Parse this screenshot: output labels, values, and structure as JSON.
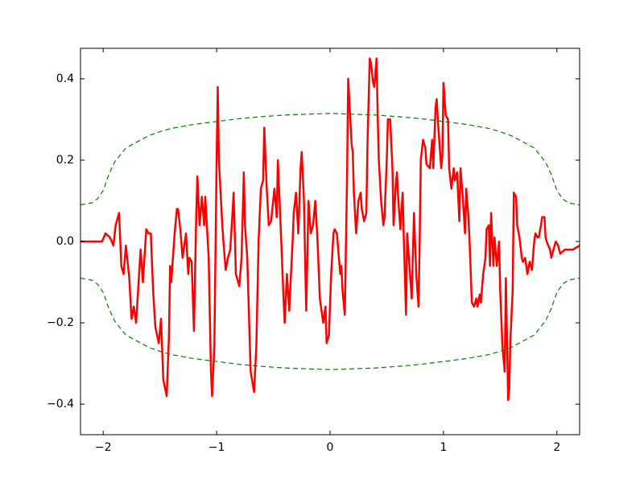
{
  "chart_data": {
    "type": "line",
    "xlim": [
      -2.2,
      2.2
    ],
    "ylim": [
      -0.475,
      0.475
    ],
    "xticks": [
      {
        "value": -2,
        "label": "−2"
      },
      {
        "value": -1,
        "label": "−1"
      },
      0,
      1,
      2
    ],
    "yticks": [
      {
        "value": -0.4,
        "label": "−0.4"
      },
      {
        "value": -0.2,
        "label": "−0.2"
      },
      {
        "value": 0,
        "label": "0.0"
      },
      0.2,
      0.4
    ],
    "grid": false,
    "series": [
      {
        "color": "#ff0000",
        "linestyle": "solid",
        "x": [
          -2.2,
          -2.07,
          -2.01,
          -1.98,
          -1.94,
          -1.91,
          -1.89,
          -1.86,
          -1.84,
          -1.82,
          -1.8,
          -1.77,
          -1.75,
          -1.73,
          -1.71,
          -1.69,
          -1.67,
          -1.65,
          -1.62,
          -1.6,
          -1.58,
          -1.56,
          -1.54,
          -1.51,
          -1.49,
          -1.47,
          -1.44,
          -1.42,
          -1.41,
          -1.4,
          -1.37,
          -1.35,
          -1.34,
          -1.32,
          -1.3,
          -1.27,
          -1.25,
          -1.24,
          -1.22,
          -1.2,
          -1.18,
          -1.17,
          -1.15,
          -1.13,
          -1.11,
          -1.1,
          -1.07,
          -1.05,
          -1.04,
          -1.02,
          -1.0,
          -0.99,
          -0.98,
          -0.95,
          -0.94,
          -0.92,
          -0.9,
          -0.88,
          -0.86,
          -0.85,
          -0.83,
          -0.8,
          -0.78,
          -0.76,
          -0.75,
          -0.73,
          -0.7,
          -0.67,
          -0.65,
          -0.63,
          -0.61,
          -0.59,
          -0.58,
          -0.56,
          -0.54,
          -0.52,
          -0.49,
          -0.47,
          -0.46,
          -0.43,
          -0.41,
          -0.4,
          -0.38,
          -0.36,
          -0.33,
          -0.32,
          -0.3,
          -0.28,
          -0.26,
          -0.25,
          -0.23,
          -0.22,
          -0.21,
          -0.19,
          -0.17,
          -0.15,
          -0.13,
          -0.11,
          -0.09,
          -0.06,
          -0.04,
          -0.03,
          -0.01,
          0.01,
          0.03,
          0.04,
          0.06,
          0.09,
          0.1,
          0.11,
          0.13,
          0.15,
          0.16,
          0.19,
          0.2,
          0.21,
          0.23,
          0.25,
          0.27,
          0.28,
          0.3,
          0.32,
          0.33,
          0.35,
          0.36,
          0.38,
          0.39,
          0.41,
          0.42,
          0.43,
          0.45,
          0.47,
          0.48,
          0.5,
          0.51,
          0.53,
          0.55,
          0.56,
          0.58,
          0.59,
          0.6,
          0.62,
          0.64,
          0.65,
          0.67,
          0.68,
          0.7,
          0.72,
          0.74,
          0.76,
          0.78,
          0.79,
          0.8,
          0.82,
          0.84,
          0.85,
          0.88,
          0.9,
          0.91,
          0.93,
          0.94,
          0.95,
          0.98,
          0.99,
          1.0,
          1.02,
          1.04,
          1.05,
          1.07,
          1.09,
          1.1,
          1.12,
          1.14,
          1.15,
          1.17,
          1.19,
          1.2,
          1.22,
          1.23,
          1.25,
          1.27,
          1.29,
          1.3,
          1.32,
          1.33,
          1.35,
          1.37,
          1.38,
          1.4,
          1.41,
          1.42,
          1.44,
          1.45,
          1.47,
          1.49,
          1.5,
          1.52,
          1.54,
          1.55,
          1.57,
          1.58,
          1.59,
          1.61,
          1.62,
          1.64,
          1.65,
          1.67,
          1.69,
          1.7,
          1.72,
          1.73,
          1.74,
          1.76,
          1.78,
          1.8,
          1.81,
          1.83,
          1.84,
          1.86,
          1.87,
          1.89,
          1.9,
          1.91,
          1.94,
          1.95,
          1.96,
          1.99,
          2.01,
          2.03,
          2.07,
          2.14,
          2.2
        ],
        "values": [
          0,
          0,
          0,
          0.02,
          0.01,
          -0.01,
          0.04,
          0.07,
          -0.06,
          -0.08,
          -0.01,
          -0.09,
          -0.19,
          -0.16,
          -0.2,
          -0.11,
          -0.02,
          -0.1,
          0.03,
          0.02,
          0.02,
          -0.12,
          -0.21,
          -0.25,
          -0.19,
          -0.34,
          -0.38,
          -0.23,
          -0.06,
          -0.1,
          0.02,
          0.08,
          0.08,
          0.03,
          -0.04,
          0.02,
          -0.08,
          -0.04,
          -0.05,
          -0.22,
          0.06,
          0.16,
          0.04,
          0.11,
          0.04,
          0.11,
          -0.04,
          -0.32,
          -0.38,
          -0.26,
          0.2,
          0.38,
          0.2,
          0.04,
          0,
          -0.07,
          -0.04,
          -0.02,
          0.07,
          0.12,
          -0.08,
          -0.11,
          -0.04,
          0.17,
          0.04,
          -0.04,
          -0.32,
          -0.37,
          -0.26,
          0,
          0.13,
          0.15,
          0.28,
          0.14,
          0.04,
          0.05,
          0.13,
          0.06,
          0.2,
          0,
          -0.14,
          -0.2,
          -0.08,
          -0.17,
          0,
          0.07,
          0.12,
          0.02,
          0.18,
          0.22,
          0.1,
          -0.04,
          -0.17,
          0.1,
          0.02,
          0.04,
          0.1,
          0,
          -0.14,
          -0.2,
          -0.16,
          -0.25,
          -0.23,
          -0.08,
          0.02,
          0.03,
          0.02,
          -0.08,
          -0.06,
          -0.12,
          -0.18,
          0.16,
          0.4,
          0.24,
          0.22,
          0.12,
          0.02,
          0.1,
          0.12,
          0.08,
          0.05,
          0.07,
          0.24,
          0.45,
          0.44,
          0.39,
          0.38,
          0.45,
          0.31,
          0.2,
          0.1,
          0.04,
          0.06,
          0.2,
          0.3,
          0.3,
          0.18,
          0.04,
          0.14,
          0.17,
          0.11,
          0.03,
          0.12,
          0.01,
          -0.18,
          0.02,
          -0.06,
          -0.14,
          0.07,
          -0.08,
          -0.16,
          0,
          0.2,
          0.25,
          0.23,
          0.19,
          0.18,
          0.25,
          0.18,
          0.33,
          0.35,
          0.3,
          0.18,
          0.21,
          0.39,
          0.31,
          0.3,
          0.18,
          0.13,
          0.18,
          0.15,
          0.17,
          0.05,
          0.18,
          0.11,
          0.02,
          0.13,
          0.06,
          0,
          -0.15,
          -0.16,
          -0.14,
          -0.16,
          -0.13,
          -0.15,
          -0.08,
          -0.04,
          0.03,
          0.04,
          -0.06,
          0.07,
          -0.06,
          0.01,
          -0.06,
          0,
          -0.12,
          -0.26,
          -0.32,
          -0.09,
          -0.39,
          -0.36,
          -0.24,
          -0.12,
          0.12,
          0.11,
          0.04,
          0.01,
          -0.04,
          -0.05,
          -0.04,
          -0.06,
          -0.08,
          -0.05,
          -0.07,
          0,
          0.02,
          0.01,
          0.01,
          0.04,
          0.06,
          0.06,
          0.01,
          0,
          -0.02,
          -0.04,
          -0.03,
          0,
          -0.01,
          -0.03,
          -0.02,
          -0.02,
          -0.01
        ]
      },
      {
        "color": "#008000",
        "linestyle": "dashed",
        "x": [
          -2.2,
          -2.1,
          -2.05,
          -2.0,
          -1.95,
          -1.9,
          -1.8,
          -1.7,
          -1.6,
          -1.5,
          -1.4,
          -1.2,
          -1.0,
          -0.8,
          -0.6,
          -0.4,
          -0.2,
          0,
          0.2,
          0.4,
          0.6,
          0.8,
          1.0,
          1.2,
          1.4,
          1.5,
          1.6,
          1.7,
          1.8,
          1.9,
          1.95,
          2.0,
          2.05,
          2.1,
          2.2
        ],
        "values": [
          0.09,
          0.095,
          0.105,
          0.125,
          0.165,
          0.195,
          0.23,
          0.245,
          0.26,
          0.27,
          0.278,
          0.288,
          0.295,
          0.302,
          0.307,
          0.311,
          0.313,
          0.315,
          0.313,
          0.311,
          0.307,
          0.302,
          0.295,
          0.288,
          0.278,
          0.27,
          0.26,
          0.245,
          0.23,
          0.195,
          0.165,
          0.125,
          0.105,
          0.095,
          0.09
        ]
      },
      {
        "color": "#008000",
        "linestyle": "dashed",
        "x": [
          -2.2,
          -2.1,
          -2.05,
          -2.0,
          -1.95,
          -1.9,
          -1.8,
          -1.7,
          -1.6,
          -1.5,
          -1.4,
          -1.2,
          -1.0,
          -0.8,
          -0.6,
          -0.4,
          -0.2,
          0,
          0.2,
          0.4,
          0.6,
          0.8,
          1.0,
          1.2,
          1.4,
          1.5,
          1.6,
          1.7,
          1.8,
          1.9,
          1.95,
          2.0,
          2.05,
          2.1,
          2.2
        ],
        "values": [
          -0.09,
          -0.095,
          -0.105,
          -0.125,
          -0.165,
          -0.195,
          -0.23,
          -0.245,
          -0.26,
          -0.27,
          -0.278,
          -0.288,
          -0.295,
          -0.302,
          -0.307,
          -0.311,
          -0.313,
          -0.315,
          -0.313,
          -0.311,
          -0.307,
          -0.302,
          -0.295,
          -0.288,
          -0.278,
          -0.27,
          -0.26,
          -0.245,
          -0.23,
          -0.195,
          -0.165,
          -0.125,
          -0.105,
          -0.095,
          -0.09
        ]
      }
    ]
  }
}
